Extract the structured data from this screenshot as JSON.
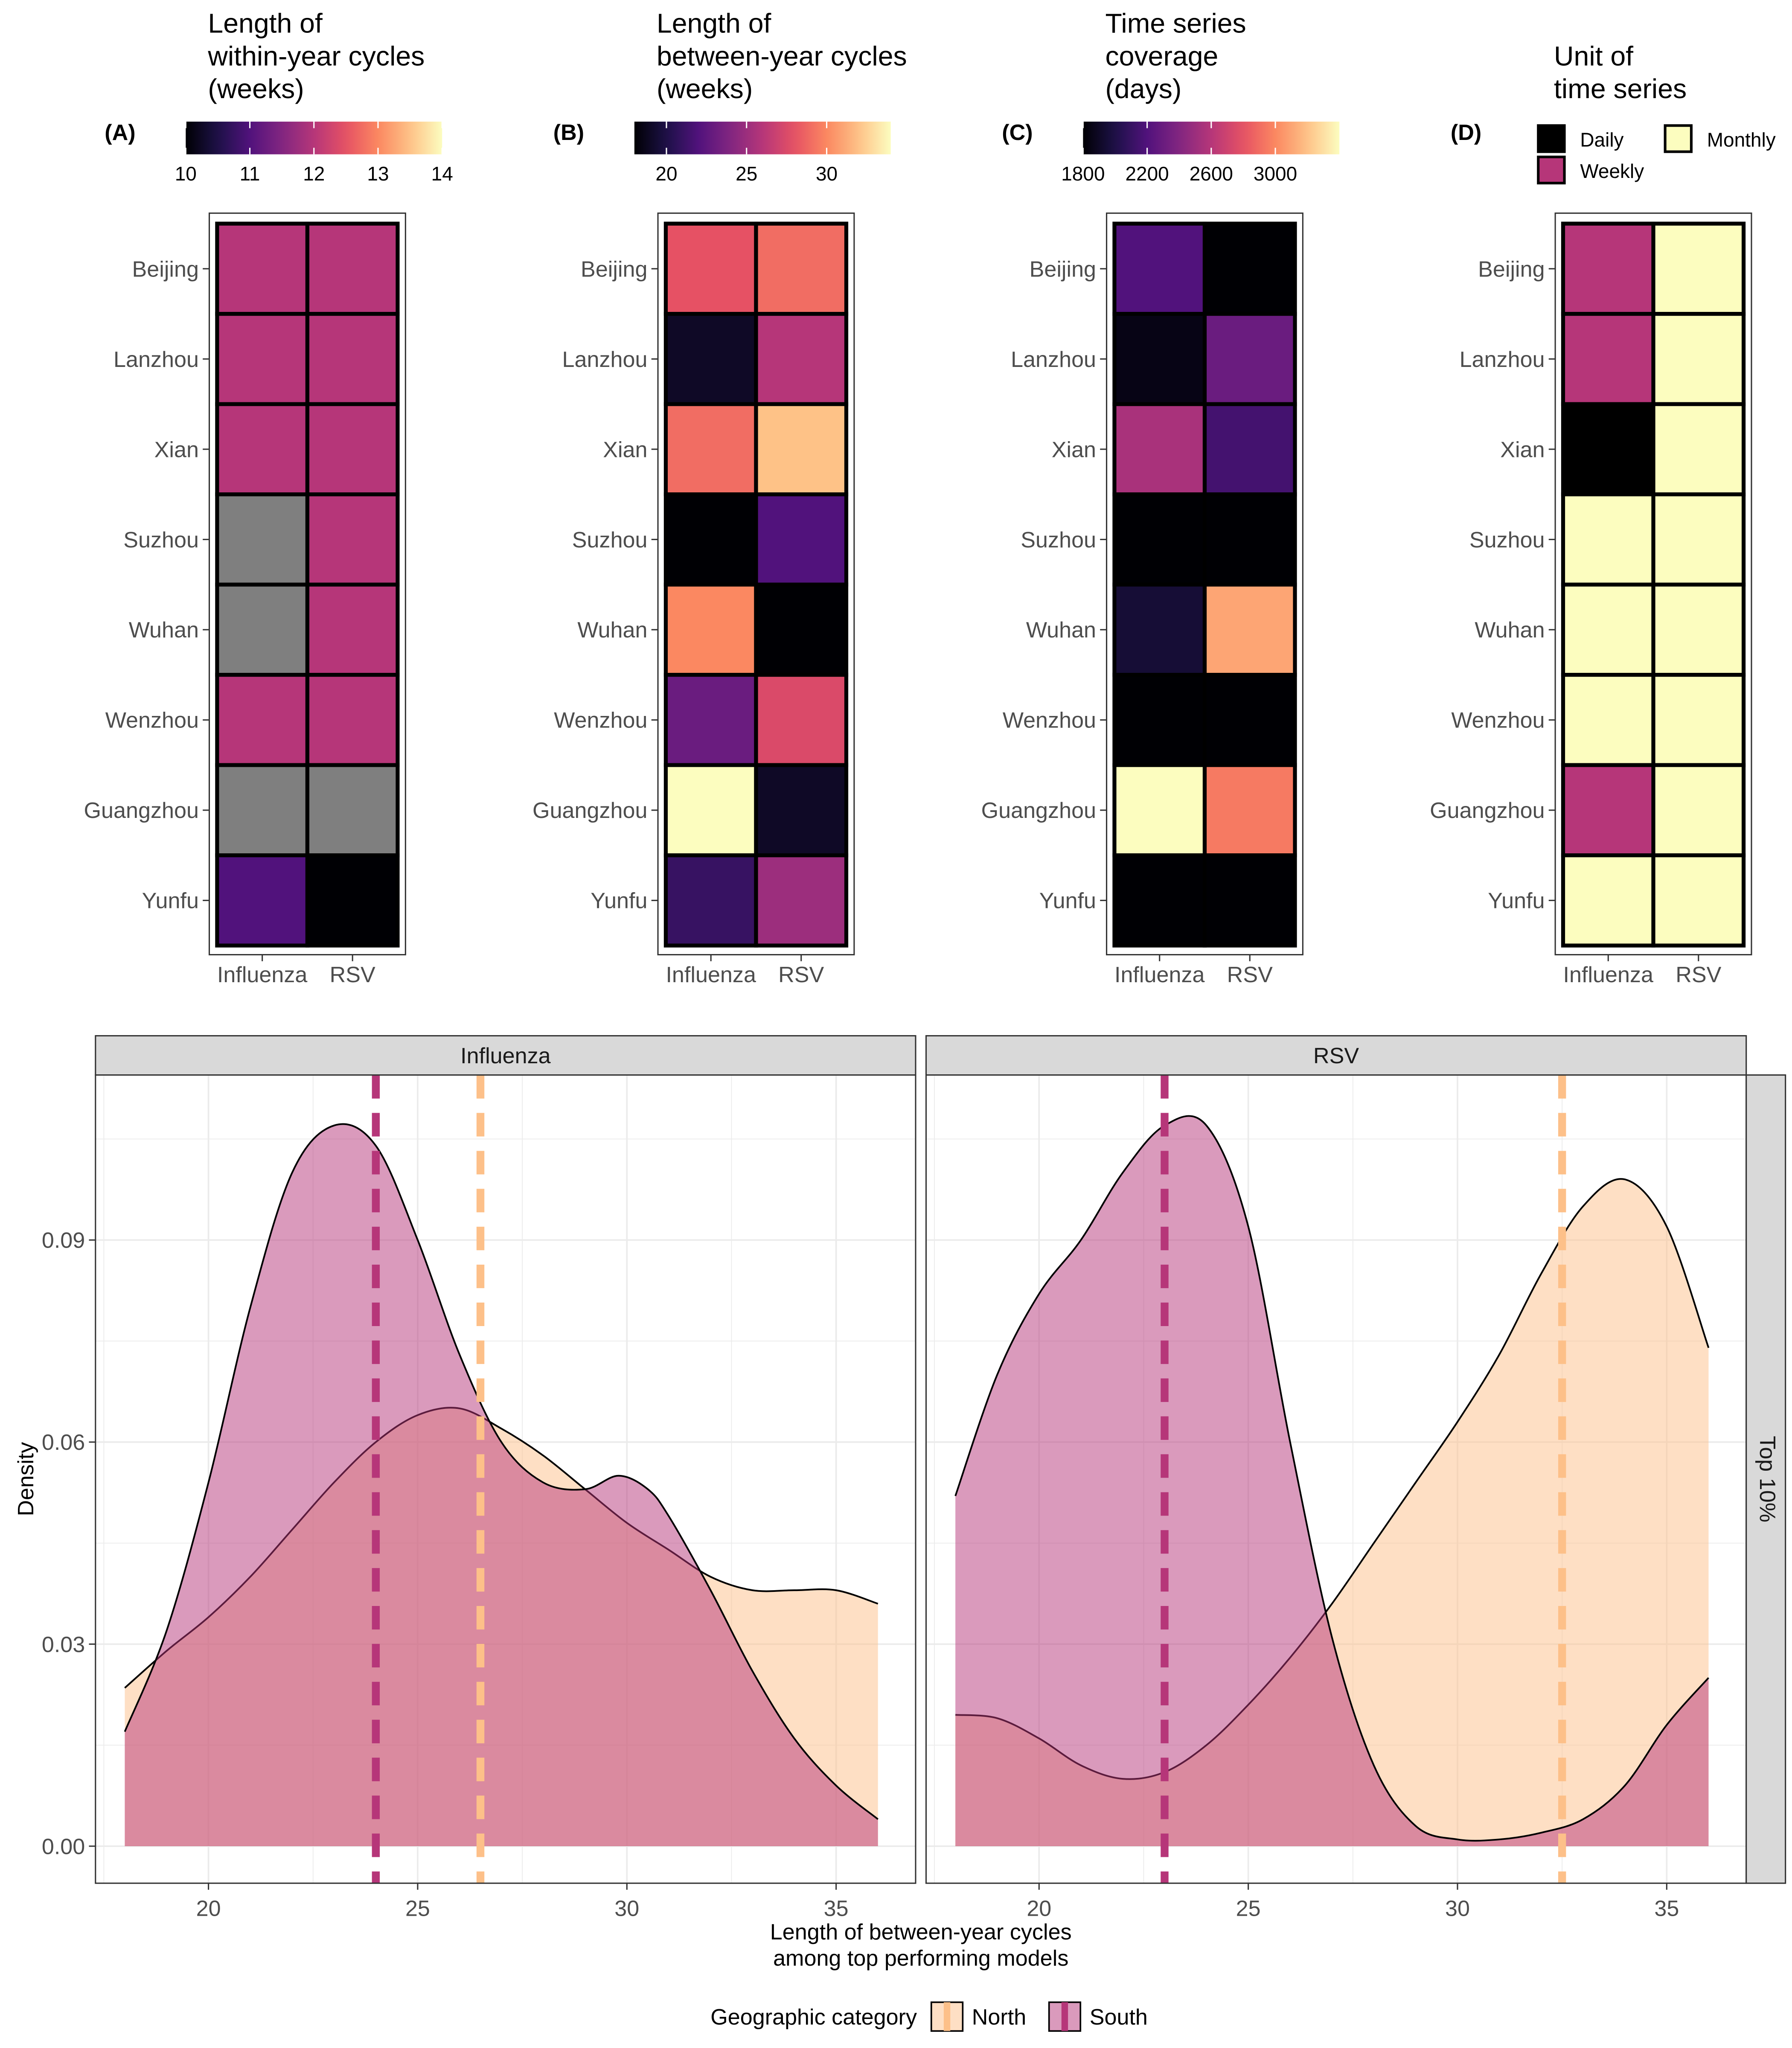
{
  "palette": {
    "north": "#FDC089",
    "south": "#B63679",
    "overlap": "#D8869B",
    "na": "#7F7F7F",
    "strip_bg": "#D9D9D9",
    "grid": "#EBEBEB",
    "magma_stops": [
      "#000004",
      "#1D1147",
      "#51127C",
      "#822681",
      "#B63679",
      "#E65164",
      "#FB8861",
      "#FEC287",
      "#FCFDBF"
    ]
  },
  "heatmaps": {
    "cities": [
      "Beijing",
      "Lanzhou",
      "Xian",
      "Suzhou",
      "Wuhan",
      "Wenzhou",
      "Guangzhou",
      "Yunfu"
    ],
    "columns": [
      "Influenza",
      "RSV"
    ],
    "panels": [
      {
        "tag": "(A)",
        "title": [
          "Length of",
          "within-year cycles",
          "(weeks)"
        ],
        "scale": {
          "min": 10,
          "max": 14,
          "ticks": [
            "10",
            "11",
            "12",
            "13",
            "14"
          ],
          "tick_values": [
            10,
            11,
            12,
            13,
            14
          ]
        },
        "values": [
          [
            12,
            12
          ],
          [
            12,
            12
          ],
          [
            12,
            12
          ],
          [
            null,
            12
          ],
          [
            null,
            12
          ],
          [
            12,
            12
          ],
          [
            null,
            null
          ],
          [
            11,
            10
          ]
        ]
      },
      {
        "tag": "(B)",
        "title": [
          "Length of",
          "between-year cycles",
          "(weeks)"
        ],
        "scale": {
          "min": 18,
          "max": 34,
          "ticks": [
            "20",
            "25",
            "30"
          ],
          "tick_values": [
            20,
            25,
            30
          ]
        },
        "values": [
          [
            28,
            29
          ],
          [
            19,
            26
          ],
          [
            29,
            32
          ],
          [
            18,
            22
          ],
          [
            30,
            18
          ],
          [
            23,
            27.5
          ],
          [
            34,
            19
          ],
          [
            21,
            25
          ]
        ]
      },
      {
        "tag": "(C)",
        "title": [
          "Time series",
          "coverage",
          "(days)"
        ],
        "scale": {
          "min": 1800,
          "max": 3400,
          "ticks": [
            "1800",
            "2200",
            "2600",
            "3000"
          ],
          "tick_values": [
            1800,
            2200,
            2600,
            3000
          ]
        },
        "values": [
          [
            2200,
            1800
          ],
          [
            1850,
            2300
          ],
          [
            2550,
            2150
          ],
          [
            1800,
            1800
          ],
          [
            1950,
            3100
          ],
          [
            1800,
            1800
          ],
          [
            3400,
            2950
          ],
          [
            1800,
            1800
          ]
        ]
      },
      {
        "tag": "(D)",
        "title": [
          "Unit of",
          "time series"
        ],
        "categorical": true,
        "legend": [
          {
            "label": "Daily",
            "color": "#000000"
          },
          {
            "label": "Weekly",
            "color": "#B63679"
          },
          {
            "label": "Monthly",
            "color": "#FCFDBF"
          }
        ],
        "values": [
          [
            "Weekly",
            "Monthly"
          ],
          [
            "Weekly",
            "Monthly"
          ],
          [
            "Daily",
            "Monthly"
          ],
          [
            "Monthly",
            "Monthly"
          ],
          [
            "Monthly",
            "Monthly"
          ],
          [
            "Monthly",
            "Monthly"
          ],
          [
            "Weekly",
            "Monthly"
          ],
          [
            "Monthly",
            "Monthly"
          ]
        ]
      }
    ]
  },
  "chart_data": {
    "type": "area",
    "xlabel": [
      "Length of between-year cycles",
      "among top performing models"
    ],
    "ylabel": "Density",
    "xlim": [
      17.3,
      36.9
    ],
    "ylim": [
      -0.0055,
      0.1145
    ],
    "x_ticks": [
      20,
      25,
      30,
      35
    ],
    "y_ticks": [
      0.0,
      0.03,
      0.06,
      0.09
    ],
    "y_tick_labels": [
      "0.00",
      "0.03",
      "0.06",
      "0.09"
    ],
    "row_strip": "Top 10%",
    "grid": true,
    "legend": {
      "title": "Geographic category",
      "items": [
        "North",
        "South"
      ],
      "position": "bottom"
    },
    "facets": [
      {
        "name": "Influenza",
        "series": [
          {
            "name": "North",
            "mean": 26.5,
            "x": [
              18,
              19,
              20,
              21,
              22,
              23,
              24,
              25,
              26,
              27,
              28,
              29,
              30,
              31,
              32,
              33,
              34,
              35,
              36
            ],
            "y": [
              0.0235,
              0.029,
              0.034,
              0.04,
              0.047,
              0.054,
              0.06,
              0.064,
              0.065,
              0.062,
              0.058,
              0.053,
              0.048,
              0.044,
              0.04,
              0.038,
              0.038,
              0.038,
              0.036
            ]
          },
          {
            "name": "South",
            "mean": 24,
            "x": [
              18,
              19,
              20,
              21,
              22,
              23,
              24,
              25,
              26,
              27,
              28,
              29,
              29.8,
              30.5,
              31,
              32,
              33,
              34,
              35,
              36
            ],
            "y": [
              0.017,
              0.032,
              0.054,
              0.08,
              0.1,
              0.107,
              0.104,
              0.09,
              0.073,
              0.06,
              0.054,
              0.053,
              0.055,
              0.053,
              0.049,
              0.038,
              0.026,
              0.016,
              0.009,
              0.004
            ]
          }
        ]
      },
      {
        "name": "RSV",
        "series": [
          {
            "name": "North",
            "mean": 32.5,
            "x": [
              18,
              19,
              20,
              21,
              22,
              23,
              24,
              25,
              26,
              27,
              28,
              29,
              30,
              31,
              32,
              33,
              34,
              35,
              36
            ],
            "y": [
              0.0195,
              0.019,
              0.016,
              0.012,
              0.01,
              0.011,
              0.015,
              0.021,
              0.028,
              0.036,
              0.045,
              0.054,
              0.063,
              0.073,
              0.085,
              0.095,
              0.099,
              0.092,
              0.074
            ]
          },
          {
            "name": "South",
            "mean": 23,
            "x": [
              18,
              19,
              20,
              21,
              22,
              23,
              24,
              25,
              26,
              27,
              28,
              29,
              30,
              31,
              32,
              33,
              34,
              35,
              36
            ],
            "y": [
              0.052,
              0.07,
              0.082,
              0.09,
              0.1,
              0.107,
              0.107,
              0.092,
              0.06,
              0.031,
              0.012,
              0.003,
              0.001,
              0.001,
              0.002,
              0.004,
              0.009,
              0.018,
              0.025
            ]
          }
        ]
      }
    ]
  }
}
